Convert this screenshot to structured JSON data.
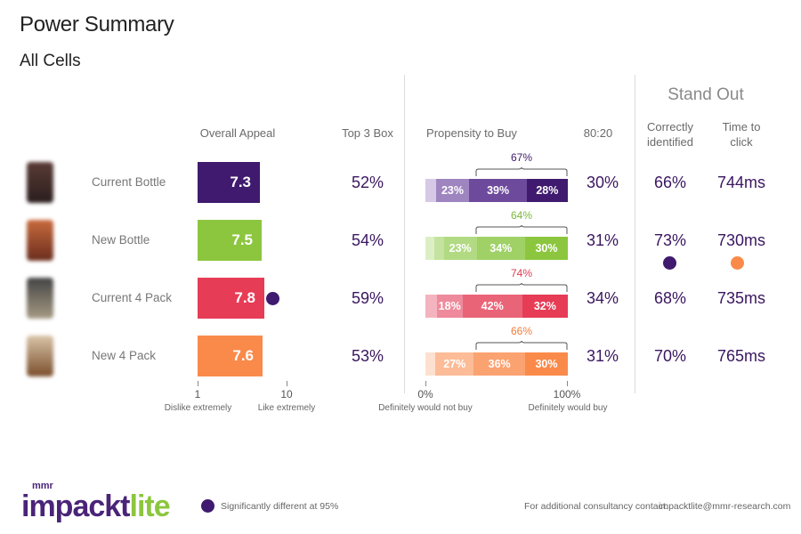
{
  "header": {
    "title": "Power Summary",
    "subtitle": "All Cells"
  },
  "columns": {
    "overall_appeal": "Overall Appeal",
    "top3": "Top 3 Box",
    "propensity": "Propensity to Buy",
    "ratio": "80:20",
    "stand_out": "Stand Out",
    "correctly_identified_l1": "Correctly",
    "correctly_identified_l2": "identified",
    "time_to_click_l1": "Time to",
    "time_to_click_l2": "click"
  },
  "appeal_axis": {
    "min_label": "1",
    "max_label": "10",
    "min_desc": "Dislike extremely",
    "max_desc": "Like extremely",
    "min": 1,
    "max": 10
  },
  "propensity_axis": {
    "min_label": "0%",
    "max_label": "100%",
    "min_desc": "Definitely would not buy",
    "max_desc": "Definitely would buy"
  },
  "rows": [
    {
      "label": "Current Bottle",
      "appeal": 7.3,
      "appeal_label": "7.3",
      "top3": "52%",
      "ratio": "30%",
      "identified": "66%",
      "time": "744ms",
      "color": "#3f1a6e",
      "light": "#cbb8dd",
      "mid": "#a58bc4",
      "dark2": "#7a57a6",
      "segs": [
        {
          "v": 7,
          "c": "#d6c9e6",
          "t": ""
        },
        {
          "v": 23,
          "c": "#9f85c0",
          "t": "23%"
        },
        {
          "v": 39,
          "c": "#6d4a9c",
          "t": "39%"
        },
        {
          "v": 28,
          "c": "#3f1a6e",
          "t": "28%"
        }
      ],
      "brace": "67%",
      "brace_color": "#3f1a6e",
      "sig_appeal": false,
      "sig_identified": false,
      "sig_time": false
    },
    {
      "label": "New Bottle",
      "appeal": 7.5,
      "appeal_label": "7.5",
      "top3": "54%",
      "ratio": "31%",
      "identified": "73%",
      "time": "730ms",
      "color": "#8cc63f",
      "segs": [
        {
          "v": 6,
          "c": "#dcefc4",
          "t": ""
        },
        {
          "v": 7,
          "c": "#c4e3a0",
          "t": ""
        },
        {
          "v": 23,
          "c": "#b1da82",
          "t": "23%"
        },
        {
          "v": 34,
          "c": "#9fd166",
          "t": "34%"
        },
        {
          "v": 30,
          "c": "#8cc63f",
          "t": "30%"
        }
      ],
      "brace": "64%",
      "brace_color": "#7ab83a",
      "sig_appeal": false,
      "sig_identified": true,
      "sig_time": true
    },
    {
      "label": "Current 4 Pack",
      "appeal": 7.8,
      "appeal_label": "7.8",
      "top3": "59%",
      "ratio": "34%",
      "identified": "68%",
      "time": "735ms",
      "color": "#e63c55",
      "segs": [
        {
          "v": 8,
          "c": "#f4b4bf",
          "t": ""
        },
        {
          "v": 18,
          "c": "#ee8a9b",
          "t": "18%"
        },
        {
          "v": 42,
          "c": "#ea6478",
          "t": "42%"
        },
        {
          "v": 32,
          "c": "#e63c55",
          "t": "32%"
        }
      ],
      "brace": "74%",
      "brace_color": "#e03a52",
      "sig_appeal": true,
      "sig_identified": false,
      "sig_time": false
    },
    {
      "label": "New 4 Pack",
      "appeal": 7.6,
      "appeal_label": "7.6",
      "top3": "53%",
      "ratio": "31%",
      "identified": "70%",
      "time": "765ms",
      "color": "#fa8a4a",
      "segs": [
        {
          "v": 7,
          "c": "#fde0cf",
          "t": ""
        },
        {
          "v": 27,
          "c": "#fcbc97",
          "t": "27%"
        },
        {
          "v": 36,
          "c": "#fba271",
          "t": "36%"
        },
        {
          "v": 30,
          "c": "#fa8a4a",
          "t": "30%"
        }
      ],
      "brace": "66%",
      "brace_color": "#f37c3b",
      "sig_appeal": false,
      "sig_identified": false,
      "sig_time": false
    }
  ],
  "chart_data": {
    "type": "bar",
    "title": "Power Summary",
    "subtitle": "All Cells",
    "categories": [
      "Current Bottle",
      "New Bottle",
      "Current 4 Pack",
      "New 4 Pack"
    ],
    "series": [
      {
        "name": "Overall Appeal",
        "values": [
          7.3,
          7.5,
          7.8,
          7.6
        ]
      },
      {
        "name": "Top 3 Box",
        "values": [
          52,
          54,
          59,
          53
        ]
      },
      {
        "name": "80:20",
        "values": [
          30,
          31,
          34,
          31
        ]
      },
      {
        "name": "Correctly identified",
        "values": [
          66,
          73,
          68,
          70
        ]
      },
      {
        "name": "Time to click",
        "values": [
          744,
          730,
          735,
          765
        ]
      }
    ],
    "propensity_to_buy_segments": [
      [
        23,
        39,
        28
      ],
      [
        23,
        34,
        30
      ],
      [
        18,
        42,
        32
      ],
      [
        27,
        36,
        30
      ]
    ],
    "propensity_to_buy_brace": [
      67,
      64,
      74,
      66
    ],
    "appeal_range": [
      1,
      10
    ]
  },
  "footer": {
    "logo_mmr": "mmr",
    "logo_a": "impackt",
    "logo_b": "lite",
    "legend": "Significantly different at 95%",
    "contact_label": "For additional consultancy contact:",
    "contact_email": "impacktlite@mmr-research.com",
    "sig_color": "#3f1a6e",
    "logo_color_a": "#4a2478",
    "logo_color_b": "#8cc63f"
  }
}
